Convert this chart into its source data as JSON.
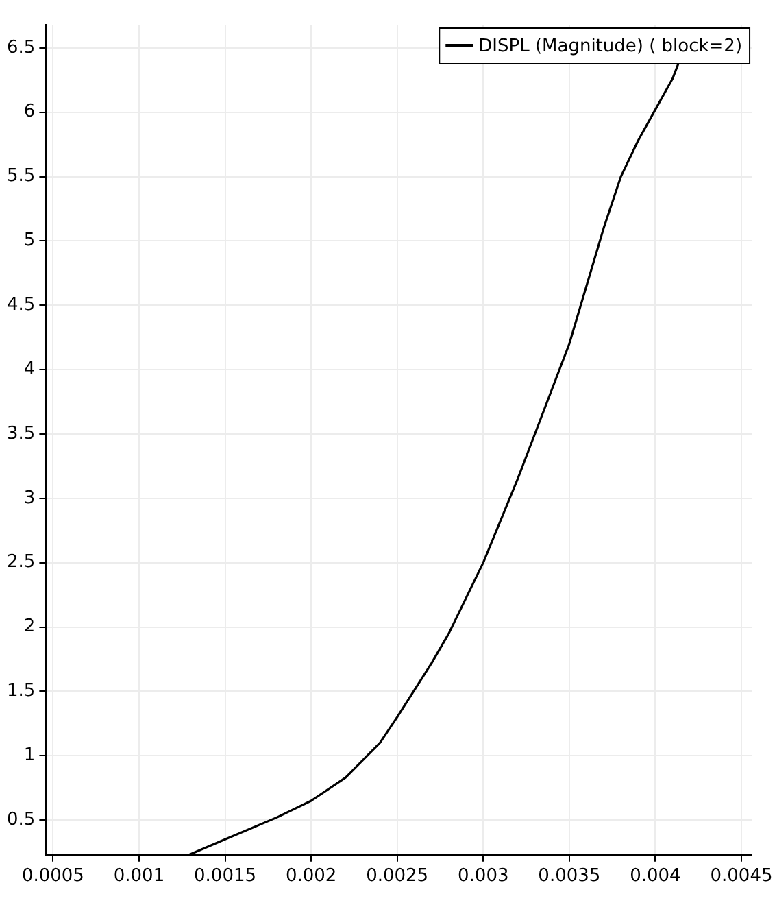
{
  "chart_data": {
    "type": "line",
    "x": [
      0.00129,
      0.0015,
      0.0018,
      0.002,
      0.0022,
      0.0024,
      0.0025,
      0.0027,
      0.0028,
      0.003,
      0.0032,
      0.0034,
      0.0035,
      0.0036,
      0.0037,
      0.0038,
      0.0039,
      0.004,
      0.0041,
      0.00414
    ],
    "series": [
      {
        "name": "DISPL (Magnitude) ( block=2)",
        "color": "#000000",
        "values": [
          0.23,
          0.35,
          0.52,
          0.65,
          0.83,
          1.1,
          1.3,
          1.72,
          1.95,
          2.5,
          3.15,
          3.85,
          4.2,
          4.65,
          5.1,
          5.5,
          5.78,
          6.02,
          6.26,
          6.4
        ]
      }
    ],
    "xlim": [
      0.00046,
      0.00456
    ],
    "xticks": [
      0.0005,
      0.001,
      0.0015,
      0.002,
      0.0025,
      0.003,
      0.0035,
      0.004,
      0.0045
    ],
    "ylim": [
      0.23,
      6.68
    ],
    "yticks": [
      0.5,
      1,
      1.5,
      2,
      2.5,
      3,
      3.5,
      4,
      4.5,
      5,
      5.5,
      6,
      6.5
    ],
    "grid": true,
    "legend": "top right",
    "marker": "none",
    "line_style": "solid"
  }
}
